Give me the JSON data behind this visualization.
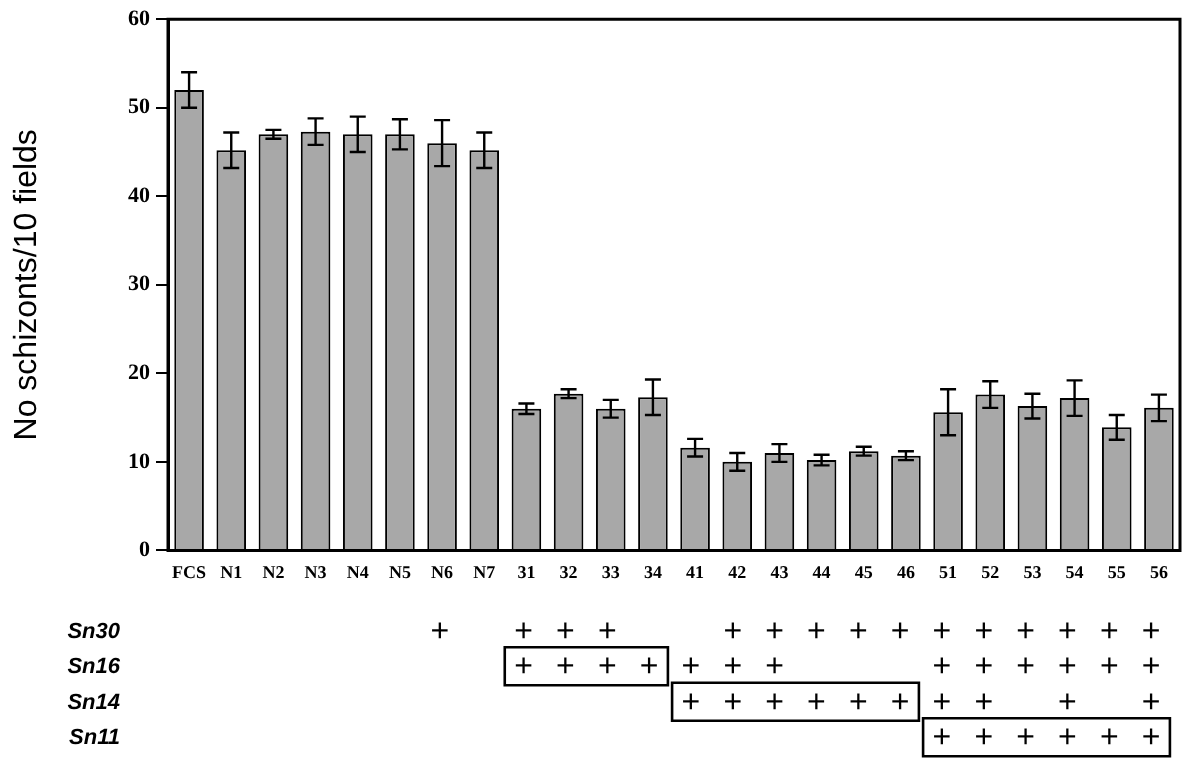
{
  "chart_data": [
    {
      "type": "bar",
      "ylabel": "No schizonts/10 fields",
      "categories": [
        "FCS",
        "N1",
        "N2",
        "N3",
        "N4",
        "N5",
        "N6",
        "N7",
        "31",
        "32",
        "33",
        "34",
        "41",
        "42",
        "43",
        "44",
        "45",
        "46",
        "51",
        "52",
        "53",
        "54",
        "55",
        "56"
      ],
      "values": [
        52,
        45.2,
        47,
        47.3,
        47,
        47,
        46,
        45.2,
        16,
        17.7,
        16,
        17.3,
        11.6,
        10,
        11,
        10.2,
        11.2,
        10.7,
        15.6,
        17.6,
        16.3,
        17.2,
        13.9,
        16.1
      ],
      "errors": [
        2,
        2,
        0.5,
        1.5,
        2,
        1.7,
        2.6,
        2,
        0.6,
        0.5,
        1,
        2,
        1,
        1,
        1,
        0.6,
        0.5,
        0.5,
        2.6,
        1.5,
        1.4,
        2,
        1.4,
        1.5
      ],
      "color": "#a8a8a8",
      "ylim": [
        0,
        60
      ],
      "yticks": [
        0,
        10,
        20,
        30,
        40,
        50,
        60
      ],
      "grid": false,
      "legend": false
    },
    {
      "type": "other",
      "y_categories": [
        "Sn30",
        "Sn16",
        "Sn14",
        "Sn11"
      ],
      "cell_labels": [
        [
          null,
          null,
          null,
          null,
          null,
          null,
          "+",
          null,
          "+",
          "+",
          "+",
          null,
          null,
          "+",
          "+",
          "+",
          "+",
          "+",
          "+",
          "+",
          "+",
          "+",
          "+",
          "+"
        ],
        [
          null,
          null,
          null,
          null,
          null,
          null,
          null,
          null,
          "+",
          "+",
          "+",
          "+",
          "+",
          "+",
          "+",
          null,
          null,
          null,
          "+",
          "+",
          "+",
          "+",
          "+",
          "+"
        ],
        [
          null,
          null,
          null,
          null,
          null,
          null,
          null,
          null,
          null,
          null,
          null,
          null,
          "+",
          "+",
          "+",
          "+",
          "+",
          "+",
          "+",
          "+",
          null,
          "+",
          null,
          "+"
        ],
        [
          null,
          null,
          null,
          null,
          null,
          null,
          null,
          null,
          null,
          null,
          null,
          null,
          null,
          null,
          null,
          null,
          null,
          null,
          "+",
          "+",
          "+",
          "+",
          "+",
          "+"
        ]
      ],
      "legend": false
    }
  ]
}
